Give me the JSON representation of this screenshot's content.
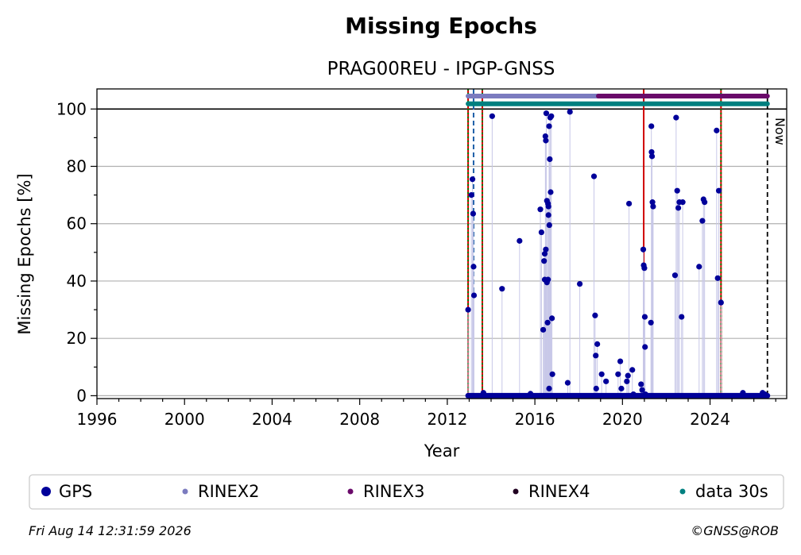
{
  "chart_data": {
    "type": "scatter",
    "title": "Missing Epochs",
    "subtitle": "PRAG00REU - IPGP-GNSS",
    "xlabel": "Year",
    "ylabel": "Missing Epochs [%]",
    "xlim": [
      1996,
      2027.5
    ],
    "ylim": [
      -1,
      107
    ],
    "xticks": [
      "1996",
      "2000",
      "2004",
      "2008",
      "2012",
      "2016",
      "2020",
      "2024"
    ],
    "xtick_values": [
      1996,
      2000,
      2004,
      2008,
      2012,
      2016,
      2020,
      2024
    ],
    "yticks": [
      "0",
      "20",
      "40",
      "60",
      "80",
      "100"
    ],
    "ytick_values": [
      0,
      20,
      40,
      60,
      80,
      100
    ],
    "grid": "horizontal",
    "legend_position": "bottom",
    "now_label": "Now",
    "now_year": 2026.62,
    "vlines": [
      {
        "x": 2012.95,
        "color": "#d00000",
        "style": "solid"
      },
      {
        "x": 2012.95,
        "color": "#008000",
        "style": "dotted"
      },
      {
        "x": 2013.2,
        "color": "#1f5fa8",
        "style": "dashed"
      },
      {
        "x": 2013.6,
        "color": "#d00000",
        "style": "solid"
      },
      {
        "x": 2013.6,
        "color": "#008000",
        "style": "dotted"
      },
      {
        "x": 2020.97,
        "color": "#d00000",
        "style": "solid"
      },
      {
        "x": 2024.5,
        "color": "#d00000",
        "style": "solid"
      },
      {
        "x": 2024.5,
        "color": "#008000",
        "style": "dotted"
      }
    ],
    "bars": [
      {
        "name": "RINEX2",
        "color": "#7b7bbf",
        "y": 104.5,
        "start": 2012.95,
        "end": 2018.9
      },
      {
        "name": "RINEX3",
        "color": "#6a0a6a",
        "y": 104.5,
        "start": 2018.9,
        "end": 2026.62
      },
      {
        "name": "data 30s",
        "color": "#008080",
        "y": 101.8,
        "start": 2012.95,
        "end": 2026.62
      }
    ],
    "series": [
      {
        "name": "GPS",
        "color": "#00009a",
        "zero_range": [
          2012.95,
          2026.62
        ],
        "x": [
          2012.95,
          2013.1,
          2013.15,
          2013.18,
          2013.2,
          2013.22,
          2013.65,
          2014.05,
          2014.5,
          2015.3,
          2015.8,
          2016.25,
          2016.3,
          2016.38,
          2016.42,
          2016.45,
          2016.48,
          2016.5,
          2016.52,
          2016.55,
          2016.58,
          2016.6,
          2016.62,
          2016.62,
          2016.65,
          2016.66,
          2016.68,
          2016.7,
          2016.72,
          2016.75,
          2016.78,
          2016.8,
          2016.45,
          2016.5,
          2016.55,
          2016.6,
          2016.65,
          2017.5,
          2017.6,
          2018.05,
          2018.7,
          2018.75,
          2018.78,
          2018.8,
          2018.85,
          2019.05,
          2019.25,
          2019.8,
          2019.9,
          2019.95,
          2020.2,
          2020.25,
          2020.3,
          2020.45,
          2020.5,
          2020.85,
          2020.9,
          2020.95,
          2020.97,
          2021.0,
          2021.02,
          2021.03,
          2021.05,
          2021.3,
          2021.32,
          2021.33,
          2021.35,
          2021.37,
          2021.4,
          2022.4,
          2022.45,
          2022.5,
          2022.55,
          2022.6,
          2022.7,
          2022.75,
          2023.5,
          2023.65,
          2023.7,
          2023.75,
          2024.3,
          2024.35,
          2024.4,
          2024.5,
          2025.5,
          2026.4,
          2026.5
        ],
        "y": [
          30,
          70,
          75.5,
          63.5,
          45,
          35,
          1,
          97.5,
          37.3,
          54,
          0.7,
          65,
          57,
          23,
          47,
          49.5,
          90.5,
          89,
          98.5,
          68,
          25.5,
          67,
          66,
          63,
          94,
          59.5,
          82.5,
          97,
          71,
          97.5,
          27,
          7.5,
          40.5,
          51,
          39.5,
          40.5,
          2.5,
          4.5,
          99,
          39,
          76.5,
          28,
          14,
          2.5,
          18,
          7.5,
          5,
          7.5,
          12,
          2.5,
          5,
          7,
          67,
          9,
          0.5,
          4,
          2,
          51,
          45.5,
          44.5,
          27.5,
          17,
          0.5,
          25.5,
          94,
          85,
          83.5,
          67.5,
          66,
          42,
          97,
          71.5,
          65.5,
          67.5,
          27.5,
          67.5,
          45,
          61,
          68.5,
          67.5,
          92.5,
          41,
          71.5,
          32.5,
          1,
          1,
          0.5
        ]
      }
    ]
  },
  "legend": [
    {
      "label": "GPS",
      "color": "#00009a",
      "size": "large"
    },
    {
      "label": "RINEX2",
      "color": "#7b7bbf",
      "size": "small"
    },
    {
      "label": "RINEX3",
      "color": "#6a0a6a",
      "size": "small"
    },
    {
      "label": "RINEX4",
      "color": "#200020",
      "size": "small"
    },
    {
      "label": "data 30s",
      "color": "#008080",
      "size": "small"
    }
  ],
  "footer": {
    "timestamp": "Fri Aug 14 12:31:59 2026",
    "credit": "©GNSS@ROB"
  }
}
